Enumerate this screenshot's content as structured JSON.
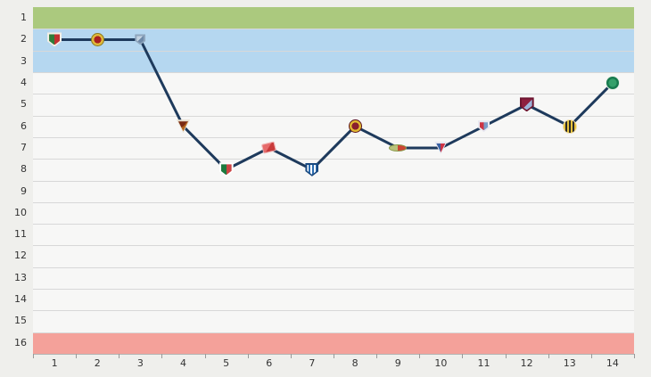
{
  "chart_data": {
    "type": "line",
    "x_ticks": [
      1,
      2,
      3,
      4,
      5,
      6,
      7,
      8,
      9,
      10,
      11,
      12,
      13,
      14
    ],
    "y_ticks": [
      1,
      2,
      3,
      4,
      5,
      6,
      7,
      8,
      9,
      10,
      11,
      12,
      13,
      14,
      15,
      16
    ],
    "y_axis_inverted": true,
    "grid": true,
    "series": [
      {
        "name": "league-position-by-round",
        "x": [
          1,
          2,
          3,
          4,
          5,
          6,
          7,
          8,
          9,
          10,
          11,
          12,
          13,
          14
        ],
        "values": [
          2,
          2,
          2,
          6,
          8,
          7,
          8,
          6,
          7,
          7,
          6,
          5,
          6,
          4
        ]
      }
    ],
    "line_color": "#1e3a5c",
    "line_width": 3,
    "row_color": "#f7f7f6",
    "grid_color": "#d8d8d8",
    "bands": [
      {
        "name": "top-zone-band",
        "from_row": 1,
        "to_row": 1,
        "color": "#abc97e"
      },
      {
        "name": "upper-zone-band",
        "from_row": 2,
        "to_row": 3,
        "color": "#b5d7f0"
      },
      {
        "name": "relegation-zone-band",
        "from_row": 16,
        "to_row": 16,
        "color": "#f4a19a"
      }
    ],
    "markers": [
      {
        "week": 1,
        "position": 2,
        "icon": "crest-green-red-shield-icon",
        "shape": "shield",
        "pattern": "split",
        "colors": [
          "#2f7d3a",
          "#c03030"
        ],
        "rim": "#f5f0e6",
        "size": 16
      },
      {
        "week": 2,
        "position": 2,
        "icon": "crest-red-yellow-round-icon",
        "shape": "circle",
        "pattern": "ring",
        "colors": [
          "#a82020",
          "#e0b93a"
        ],
        "rim": "#8a7a20",
        "size": 15
      },
      {
        "week": 3,
        "position": 2,
        "icon": "crest-steel-blue-shield-icon",
        "shape": "shield",
        "pattern": "diagonal",
        "colors": [
          "#c3d3e2",
          "#6e89a8"
        ],
        "rim": "#8fa6bd",
        "size": 12
      },
      {
        "week": 4,
        "position": 6,
        "icon": "crest-maroon-pennant-icon",
        "shape": "pennant",
        "pattern": "diagonal",
        "colors": [
          "#7a2a12",
          "#b5651d"
        ],
        "rim": "#e8e0d0",
        "size": 15
      },
      {
        "week": 5,
        "position": 8,
        "icon": "crest-green-white-red-shield-icon",
        "shape": "shield",
        "pattern": "split",
        "colors": [
          "#1d7a3e",
          "#cc4444"
        ],
        "rim": "#ffffff",
        "size": 16
      },
      {
        "week": 6,
        "position": 7,
        "icon": "crest-red-flag-icon",
        "shape": "flag",
        "pattern": "diagonal",
        "colors": [
          "#e66a6a",
          "#c93a3a"
        ],
        "rim": "#f0b0b0",
        "size": 15
      },
      {
        "week": 7,
        "position": 8,
        "icon": "crest-blue-white-stripes-icon",
        "shape": "shield",
        "pattern": "stripes",
        "colors": [
          "#ffffff",
          "#2b6cb0"
        ],
        "rim": "#1a4a80",
        "size": 15
      },
      {
        "week": 8,
        "position": 6,
        "icon": "crest-red-circle-yellow-ring-icon",
        "shape": "circle",
        "pattern": "ring",
        "colors": [
          "#8a1f2d",
          "#e0b931"
        ],
        "rim": "#5e1520",
        "size": 15
      },
      {
        "week": 9,
        "position": 7,
        "icon": "crest-olive-wide-icon",
        "shape": "wide",
        "pattern": "split",
        "colors": [
          "#b9c27a",
          "#cc4433"
        ],
        "rim": "#8a9a4a",
        "size": 13
      },
      {
        "week": 10,
        "position": 7,
        "icon": "crest-blue-red-triangle-icon",
        "shape": "pennant",
        "pattern": "split",
        "colors": [
          "#3b5fa0",
          "#cc3344"
        ],
        "rim": "#e8e8f0",
        "size": 14
      },
      {
        "week": 11,
        "position": 6,
        "icon": "crest-red-monogram-icon",
        "shape": "shield",
        "pattern": "split",
        "colors": [
          "#cc3344",
          "#7a9ac7"
        ],
        "rim": "#e8e8f0",
        "size": 13
      },
      {
        "week": 12,
        "position": 5,
        "icon": "crest-crimson-striped-shield-icon",
        "shape": "shield",
        "pattern": "diagonal",
        "colors": [
          "#8e1f3f",
          "#9db3d8"
        ],
        "rim": "#6e1530",
        "size": 16
      },
      {
        "week": 13,
        "position": 6,
        "icon": "crest-yellow-black-stripes-icon",
        "shape": "circle",
        "pattern": "stripes",
        "colors": [
          "#e7c23a",
          "#2a2a2a"
        ],
        "rim": "#f0dfae",
        "size": 16
      },
      {
        "week": 14,
        "position": 4,
        "icon": "crest-green-ring-circle-icon",
        "shape": "circle",
        "pattern": "ring",
        "colors": [
          "#34a06a",
          "#177a4e"
        ],
        "rim": "#e8f0e8",
        "size": 16
      }
    ]
  },
  "page": {
    "background": "#efefec",
    "axis_text_color": "#333333"
  }
}
